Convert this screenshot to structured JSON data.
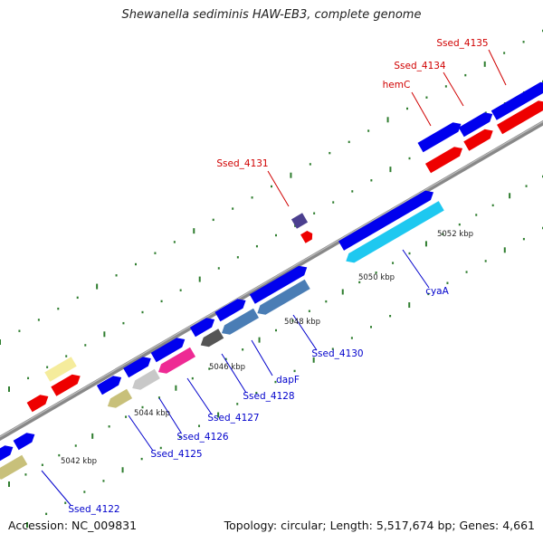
{
  "title": "Shewanella sediminis HAW-EB3, complete genome",
  "footer": {
    "accession": "Accession: NC_009831",
    "summary": "Topology: circular; Length: 5,517,674 bp; Genes: 4,661"
  },
  "scale_labels": [
    "5042 kbp",
    "5044 kbp",
    "5046 kbp",
    "5048 kbp",
    "5050 kbp",
    "5052 kbp"
  ],
  "gene_labels": [
    {
      "text": "Ssed_4135",
      "strand": "forward"
    },
    {
      "text": "Ssed_4134",
      "strand": "forward"
    },
    {
      "text": "hemC",
      "strand": "forward"
    },
    {
      "text": "Ssed_4131",
      "strand": "forward"
    },
    {
      "text": "cyaA",
      "strand": "reverse"
    },
    {
      "text": "Ssed_4130",
      "strand": "reverse"
    },
    {
      "text": "dapF",
      "strand": "reverse"
    },
    {
      "text": "Ssed_4128",
      "strand": "reverse"
    },
    {
      "text": "Ssed_4127",
      "strand": "reverse"
    },
    {
      "text": "Ssed_4126",
      "strand": "reverse"
    },
    {
      "text": "Ssed_4125",
      "strand": "reverse"
    },
    {
      "text": "Ssed_4122",
      "strand": "reverse"
    }
  ],
  "colors": {
    "forward_label": "#d00000",
    "reverse_label": "#0000cc",
    "backbone": "#888888",
    "tick": "#2e7d2e",
    "blue": "#0000ee",
    "red": "#ee0000",
    "cyan": "#1ec8f0",
    "steel": "#4a7db5",
    "khaki": "#c8c07a",
    "pale_yellow": "#f5ec9c",
    "magenta": "#ee2a94",
    "light_gray": "#c8c8c8",
    "dark_gray": "#555555",
    "slate_purple": "#4b3f8f"
  }
}
